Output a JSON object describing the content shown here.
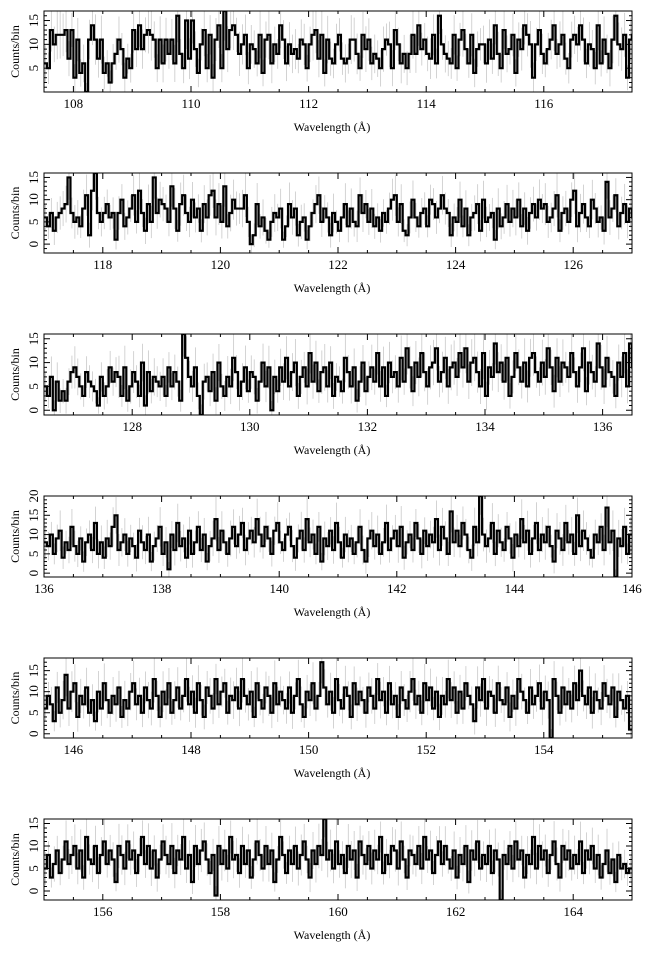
{
  "figure": {
    "ylabel": "Counts/bin",
    "xlabel": "Wavelength (Å)"
  },
  "colors": {
    "histogram": "#000000",
    "error_bars": "#c8c8c8",
    "frame": "#000000"
  },
  "chart_data": [
    {
      "type": "line",
      "style": "step histogram with error bars",
      "xlim": [
        107.5,
        117.5
      ],
      "ylim": [
        0,
        17
      ],
      "xticks": [
        108,
        110,
        112,
        114,
        116
      ],
      "xtick_labels": [
        "108",
        "110",
        "112",
        "114",
        "116"
      ],
      "yticks": [
        5,
        10,
        15
      ],
      "ytick_labels": [
        "5",
        "10",
        "15"
      ],
      "xlabel": "Wavelength (Å)",
      "ylabel": "Counts/bin",
      "bin_width": 0.05,
      "x_start": 107.5,
      "values": [
        6,
        5,
        13,
        10,
        12,
        12,
        12,
        13,
        7,
        13,
        3,
        11,
        4,
        6,
        0,
        11,
        14,
        11,
        7,
        11,
        4,
        6,
        2,
        6,
        8,
        11,
        9,
        3,
        7,
        5,
        13,
        9,
        14,
        9,
        12,
        13,
        12,
        11,
        5,
        11,
        6,
        11,
        8,
        11,
        6,
        16,
        8,
        5,
        15,
        7,
        15,
        9,
        4,
        10,
        13,
        5,
        12,
        3,
        11,
        14,
        5,
        17,
        9,
        13,
        14,
        12,
        8,
        10,
        12,
        5,
        10,
        9,
        6,
        12,
        4,
        11,
        12,
        6,
        10,
        8,
        14,
        11,
        6,
        10,
        8,
        9,
        7,
        11,
        10,
        5,
        10,
        12,
        13,
        7,
        12,
        4,
        11,
        7,
        6,
        10,
        12,
        7,
        6,
        7,
        11,
        11,
        8,
        5,
        12,
        9,
        11,
        6,
        8,
        7,
        5,
        9,
        11,
        10,
        5,
        13,
        10,
        6,
        8,
        5,
        8,
        12,
        8,
        14,
        9,
        11,
        8,
        7,
        12,
        6,
        16,
        10,
        8,
        7,
        6,
        12,
        5,
        11,
        13,
        9,
        6,
        12,
        4,
        9,
        10,
        10,
        6,
        11,
        7,
        14,
        8,
        5,
        13,
        8,
        9,
        12,
        4,
        11,
        9,
        14,
        12,
        10,
        3,
        10,
        13,
        8,
        6,
        9,
        11,
        14,
        8,
        10,
        12,
        7,
        5,
        11,
        12,
        10,
        14,
        11,
        6,
        10,
        9,
        5,
        14,
        6,
        11,
        8,
        5,
        11,
        16,
        10,
        9,
        12,
        3,
        11,
        12,
        9,
        7,
        6,
        15,
        8,
        10,
        5,
        12,
        6
      ]
    },
    {
      "type": "line",
      "style": "step histogram with error bars",
      "xlim": [
        117.0,
        127.0
      ],
      "ylim": [
        -2,
        16
      ],
      "xticks": [
        118,
        120,
        122,
        124,
        126
      ],
      "xtick_labels": [
        "118",
        "120",
        "122",
        "124",
        "126"
      ],
      "yticks": [
        0,
        5,
        10,
        15
      ],
      "ytick_labels": [
        "0",
        "5",
        "10",
        "15"
      ],
      "xlabel": "Wavelength (Å)",
      "ylabel": "Counts/bin",
      "bin_width": 0.05,
      "x_start": 117.0,
      "values": [
        6,
        4,
        7,
        3,
        6,
        7,
        8,
        9,
        15,
        7,
        5,
        6,
        4,
        8,
        11,
        2,
        12,
        16,
        7,
        5,
        7,
        9,
        6,
        7,
        1,
        7,
        10,
        4,
        6,
        8,
        11,
        5,
        12,
        7,
        3,
        9,
        5,
        15,
        7,
        10,
        9,
        8,
        5,
        13,
        8,
        3,
        9,
        11,
        7,
        5,
        10,
        6,
        8,
        3,
        9,
        6,
        11,
        12,
        6,
        9,
        5,
        13,
        4,
        7,
        10,
        8,
        8,
        8,
        11,
        5,
        0,
        2,
        9,
        4,
        6,
        3,
        1,
        5,
        7,
        6,
        8,
        1,
        4,
        9,
        6,
        8,
        2,
        5,
        6,
        1,
        4,
        7,
        9,
        11,
        5,
        8,
        6,
        2,
        7,
        5,
        3,
        6,
        9,
        4,
        8,
        5,
        4,
        11,
        7,
        9,
        5,
        8,
        4,
        6,
        3,
        7,
        5,
        8,
        10,
        11,
        5,
        9,
        3,
        2,
        6,
        10,
        6,
        4,
        7,
        8,
        4,
        10,
        9,
        6,
        8,
        11,
        8,
        7,
        2,
        6,
        5,
        10,
        4,
        8,
        2,
        6,
        7,
        9,
        3,
        10,
        5,
        6,
        7,
        1,
        8,
        4,
        6,
        9,
        5,
        8,
        6,
        10,
        4,
        8,
        3,
        7,
        9,
        6,
        10,
        8,
        9,
        5,
        6,
        8,
        11,
        3,
        7,
        8,
        5,
        10,
        12,
        4,
        7,
        9,
        6,
        4,
        10,
        8,
        5,
        6,
        3,
        14,
        6,
        8,
        11,
        4,
        7,
        9,
        5,
        8,
        6,
        3,
        -1,
        7,
        10,
        4,
        8,
        6,
        3,
        9
      ]
    },
    {
      "type": "line",
      "style": "step histogram with error bars",
      "xlim": [
        126.5,
        136.5
      ],
      "ylim": [
        -1,
        16
      ],
      "xticks": [
        128,
        130,
        132,
        134,
        136
      ],
      "xtick_labels": [
        "128",
        "130",
        "132",
        "134",
        "136"
      ],
      "yticks": [
        0,
        5,
        10,
        15
      ],
      "ytick_labels": [
        "0",
        "5",
        "10",
        "15"
      ],
      "xlabel": "Wavelength (Å)",
      "ylabel": "Counts/bin",
      "bin_width": 0.05,
      "x_start": 126.5,
      "values": [
        5,
        3,
        7,
        0,
        6,
        2,
        4,
        2,
        6,
        8,
        9,
        7,
        5,
        3,
        8,
        6,
        5,
        4,
        1,
        7,
        3,
        5,
        9,
        6,
        8,
        7,
        3,
        9,
        2,
        5,
        8,
        6,
        3,
        10,
        1,
        8,
        4,
        7,
        6,
        5,
        7,
        3,
        9,
        5,
        8,
        6,
        2,
        16,
        11,
        7,
        5,
        9,
        3,
        -1,
        6,
        7,
        4,
        8,
        2,
        10,
        5,
        3,
        7,
        5,
        11,
        8,
        3,
        6,
        9,
        4,
        8,
        7,
        2,
        6,
        10,
        5,
        9,
        0,
        7,
        4,
        9,
        6,
        11,
        5,
        8,
        10,
        3,
        7,
        9,
        5,
        12,
        6,
        10,
        4,
        8,
        9,
        5,
        10,
        3,
        7,
        6,
        4,
        11,
        8,
        5,
        9,
        2,
        6,
        10,
        4,
        7,
        9,
        6,
        12,
        5,
        9,
        3,
        10,
        7,
        8,
        5,
        11,
        6,
        13,
        9,
        4,
        10,
        7,
        12,
        8,
        5,
        9,
        10,
        13,
        6,
        8,
        11,
        5,
        9,
        10,
        7,
        12,
        9,
        13,
        6,
        10,
        11,
        8,
        5,
        12,
        3,
        9,
        7,
        14,
        8,
        10,
        6,
        11,
        3,
        7,
        12,
        9,
        6,
        10,
        5,
        11,
        12,
        8,
        6,
        10,
        7,
        13,
        9,
        4,
        11,
        6,
        10,
        9,
        7,
        12,
        8,
        5,
        9,
        13,
        4,
        10,
        8,
        6,
        14,
        9,
        5,
        11,
        8,
        7,
        3,
        10,
        7,
        12,
        5,
        14,
        9,
        6,
        2,
        8
      ]
    },
    {
      "type": "line",
      "style": "step histogram with error bars",
      "xlim": [
        136.0,
        146.0
      ],
      "ylim": [
        -1,
        20
      ],
      "xticks": [
        136,
        138,
        140,
        142,
        144,
        146
      ],
      "xtick_labels": [
        "136",
        "138",
        "140",
        "142",
        "144",
        "146"
      ],
      "yticks": [
        0,
        5,
        10,
        15,
        20
      ],
      "ytick_labels": [
        "0",
        "5",
        "10",
        "15",
        "20"
      ],
      "xlabel": "Wavelength (Å)",
      "ylabel": "Counts/bin",
      "bin_width": 0.05,
      "x_start": 136.0,
      "values": [
        8,
        7,
        10,
        5,
        9,
        11,
        4,
        8,
        6,
        12,
        7,
        5,
        9,
        3,
        8,
        10,
        6,
        13,
        5,
        8,
        4,
        9,
        7,
        12,
        15,
        6,
        8,
        10,
        5,
        9,
        7,
        4,
        11,
        8,
        6,
        10,
        3,
        7,
        9,
        12,
        5,
        8,
        1,
        10,
        6,
        13,
        7,
        9,
        4,
        11,
        5,
        8,
        12,
        6,
        10,
        3,
        7,
        9,
        14,
        6,
        11,
        8,
        5,
        9,
        12,
        7,
        10,
        13,
        6,
        9,
        11,
        8,
        14,
        10,
        7,
        12,
        9,
        5,
        11,
        13,
        8,
        6,
        10,
        12,
        7,
        4,
        9,
        11,
        6,
        14,
        8,
        10,
        5,
        12,
        3,
        9,
        7,
        11,
        6,
        13,
        8,
        4,
        10,
        7,
        9,
        5,
        8,
        12,
        6,
        3,
        9,
        11,
        7,
        10,
        5,
        8,
        13,
        6,
        9,
        11,
        7,
        12,
        4,
        8,
        10,
        6,
        13,
        9,
        5,
        11,
        7,
        10,
        8,
        14,
        6,
        12,
        9,
        5,
        16,
        8,
        11,
        7,
        13,
        10,
        6,
        4,
        12,
        8,
        20,
        10,
        7,
        9,
        13,
        5,
        11,
        8,
        6,
        12,
        9,
        4,
        10,
        7,
        14,
        8,
        11,
        5,
        9,
        13,
        6,
        10,
        8,
        12,
        7,
        3,
        11,
        9,
        6,
        13,
        8,
        10,
        5,
        15,
        7,
        11,
        9,
        6,
        4,
        10,
        8,
        12,
        6,
        17,
        8,
        11,
        -1,
        9,
        7,
        12,
        5,
        10
      ]
    },
    {
      "type": "line",
      "style": "step histogram with error bars",
      "xlim": [
        145.5,
        155.5
      ],
      "ylim": [
        -1,
        18
      ],
      "xticks": [
        146,
        148,
        150,
        152,
        154
      ],
      "xtick_labels": [
        "146",
        "148",
        "150",
        "152",
        "154"
      ],
      "yticks": [
        0,
        5,
        10,
        15
      ],
      "ytick_labels": [
        "0",
        "5",
        "10",
        "15"
      ],
      "xlabel": "Wavelength (Å)",
      "ylabel": "Counts/bin",
      "bin_width": 0.05,
      "x_start": 145.5,
      "values": [
        6,
        9,
        7,
        3,
        11,
        5,
        8,
        14,
        6,
        10,
        12,
        4,
        9,
        7,
        11,
        5,
        8,
        3,
        10,
        6,
        12,
        8,
        5,
        9,
        7,
        11,
        4,
        8,
        6,
        10,
        12,
        7,
        9,
        5,
        11,
        8,
        6,
        13,
        9,
        4,
        10,
        7,
        12,
        5,
        8,
        11,
        6,
        9,
        13,
        7,
        10,
        5,
        12,
        8,
        4,
        11,
        9,
        6,
        13,
        7,
        10,
        12,
        5,
        9,
        8,
        11,
        6,
        13,
        9,
        7,
        10,
        4,
        12,
        8,
        6,
        11,
        9,
        5,
        12,
        7,
        10,
        8,
        6,
        11,
        5,
        9,
        13,
        7,
        4,
        10,
        8,
        12,
        6,
        9,
        17,
        11,
        7,
        10,
        5,
        13,
        8,
        6,
        11,
        9,
        4,
        12,
        7,
        10,
        8,
        5,
        11,
        9,
        6,
        13,
        8,
        10,
        5,
        12,
        7,
        9,
        4,
        11,
        8,
        6,
        10,
        13,
        7,
        9,
        5,
        12,
        8,
        11,
        6,
        10,
        4,
        9,
        7,
        13,
        8,
        11,
        5,
        10,
        6,
        12,
        9,
        7,
        3,
        11,
        8,
        13,
        6,
        10,
        9,
        5,
        12,
        8,
        7,
        11,
        4,
        9,
        6,
        13,
        10,
        8,
        5,
        11,
        7,
        9,
        12,
        6,
        10,
        8,
        -1,
        13,
        9,
        5,
        11,
        7,
        10,
        6,
        12,
        8,
        15,
        9,
        7,
        11,
        5,
        10,
        8,
        6,
        12,
        9,
        7,
        11,
        4,
        10,
        8,
        6,
        9,
        1
      ]
    },
    {
      "type": "line",
      "style": "step histogram with error bars",
      "xlim": [
        155.0,
        165.0
      ],
      "ylim": [
        -2,
        16
      ],
      "xticks": [
        156,
        158,
        160,
        162,
        164
      ],
      "xtick_labels": [
        "156",
        "158",
        "160",
        "162",
        "164"
      ],
      "yticks": [
        0,
        5,
        10,
        15
      ],
      "ytick_labels": [
        "0",
        "5",
        "10",
        "15"
      ],
      "xlabel": "Wavelength (Å)",
      "ylabel": "Counts/bin",
      "bin_width": 0.05,
      "x_start": 155.0,
      "values": [
        5,
        8,
        3,
        6,
        9,
        4,
        7,
        11,
        6,
        8,
        10,
        5,
        9,
        3,
        12,
        7,
        6,
        10,
        4,
        8,
        11,
        6,
        9,
        7,
        2,
        10,
        8,
        5,
        11,
        7,
        9,
        4,
        8,
        12,
        6,
        10,
        5,
        9,
        3,
        7,
        11,
        8,
        6,
        10,
        4,
        9,
        7,
        12,
        5,
        8,
        2,
        10,
        6,
        9,
        11,
        7,
        4,
        8,
        -1,
        10,
        6,
        9,
        5,
        12,
        7,
        8,
        4,
        10,
        6,
        9,
        3,
        7,
        11,
        8,
        5,
        10,
        6,
        9,
        2,
        7,
        12,
        8,
        4,
        9,
        6,
        10,
        5,
        8,
        11,
        7,
        3,
        9,
        6,
        10,
        8,
        16,
        7,
        9,
        5,
        11,
        6,
        8,
        4,
        10,
        7,
        9,
        3,
        11,
        8,
        6,
        10,
        5,
        9,
        7,
        12,
        4,
        8,
        6,
        10,
        9,
        5,
        11,
        7,
        3,
        9,
        8,
        6,
        10,
        5,
        12,
        7,
        9,
        4,
        8,
        11,
        6,
        10,
        7,
        5,
        9,
        3,
        8,
        6,
        10,
        2,
        9,
        7,
        11,
        5,
        8,
        6,
        10,
        4,
        9,
        7,
        -2,
        8,
        6,
        10,
        5,
        11,
        7,
        9,
        3,
        8,
        6,
        12,
        5,
        10,
        7,
        9,
        4,
        8,
        11,
        6,
        3,
        10,
        7,
        9,
        5,
        8,
        6,
        11,
        4,
        9,
        7,
        10,
        5,
        8,
        3,
        6,
        9,
        4,
        7,
        2,
        8,
        5,
        6,
        4,
        5
      ]
    }
  ]
}
